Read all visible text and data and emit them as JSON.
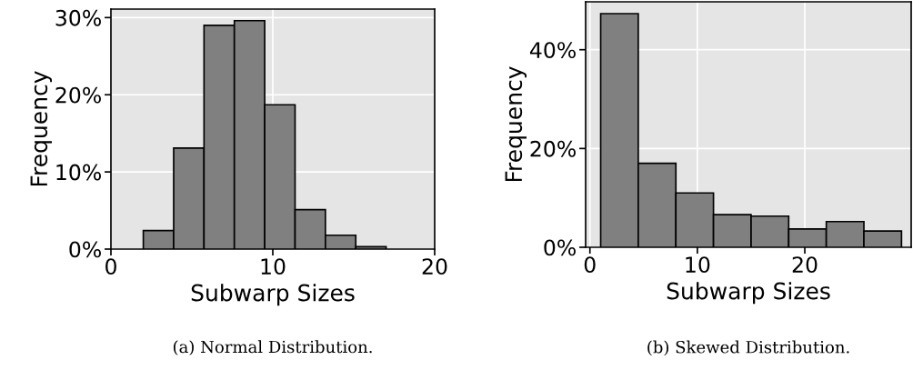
{
  "chart_data": [
    {
      "type": "histogram",
      "bins": [
        2,
        3.875,
        5.75,
        7.625,
        9.5,
        11.375,
        13.25,
        15.125,
        17
      ],
      "values": [
        2.4,
        13.1,
        29.0,
        29.6,
        18.7,
        5.1,
        1.8,
        0.3
      ],
      "color": "#808080",
      "xlim": [
        0,
        20
      ],
      "xticks": [
        0,
        10,
        20
      ],
      "ylim": [
        0,
        31.1
      ],
      "yticks": [
        {
          "value": 0,
          "label": "0%"
        },
        {
          "value": 10,
          "label": "10%"
        },
        {
          "value": 20,
          "label": "20%"
        },
        {
          "value": 30,
          "label": "30%"
        }
      ],
      "xlabel": "Subwarp Sizes",
      "ylabel": "Frequency",
      "grid": true,
      "annotations": [
        "(a) Normal Distribution."
      ]
    },
    {
      "type": "histogram",
      "bins": [
        1,
        4.5,
        8,
        11.5,
        15,
        18.5,
        22,
        25.5,
        29
      ],
      "values": [
        47.3,
        17.0,
        11.0,
        6.6,
        6.3,
        3.7,
        5.2,
        3.3
      ],
      "color": "#808080",
      "xlim": [
        -0.4,
        29.9
      ],
      "xticks": [
        0,
        10,
        20
      ],
      "ylim": [
        0,
        49.7
      ],
      "yticks": [
        {
          "value": 0,
          "label": "0%"
        },
        {
          "value": 20,
          "label": "20%"
        },
        {
          "value": 40,
          "label": "40%"
        }
      ],
      "xlabel": "Subwarp Sizes",
      "ylabel": "Frequency",
      "grid": true,
      "annotations": [
        "(b) Skewed Distribution."
      ]
    }
  ]
}
